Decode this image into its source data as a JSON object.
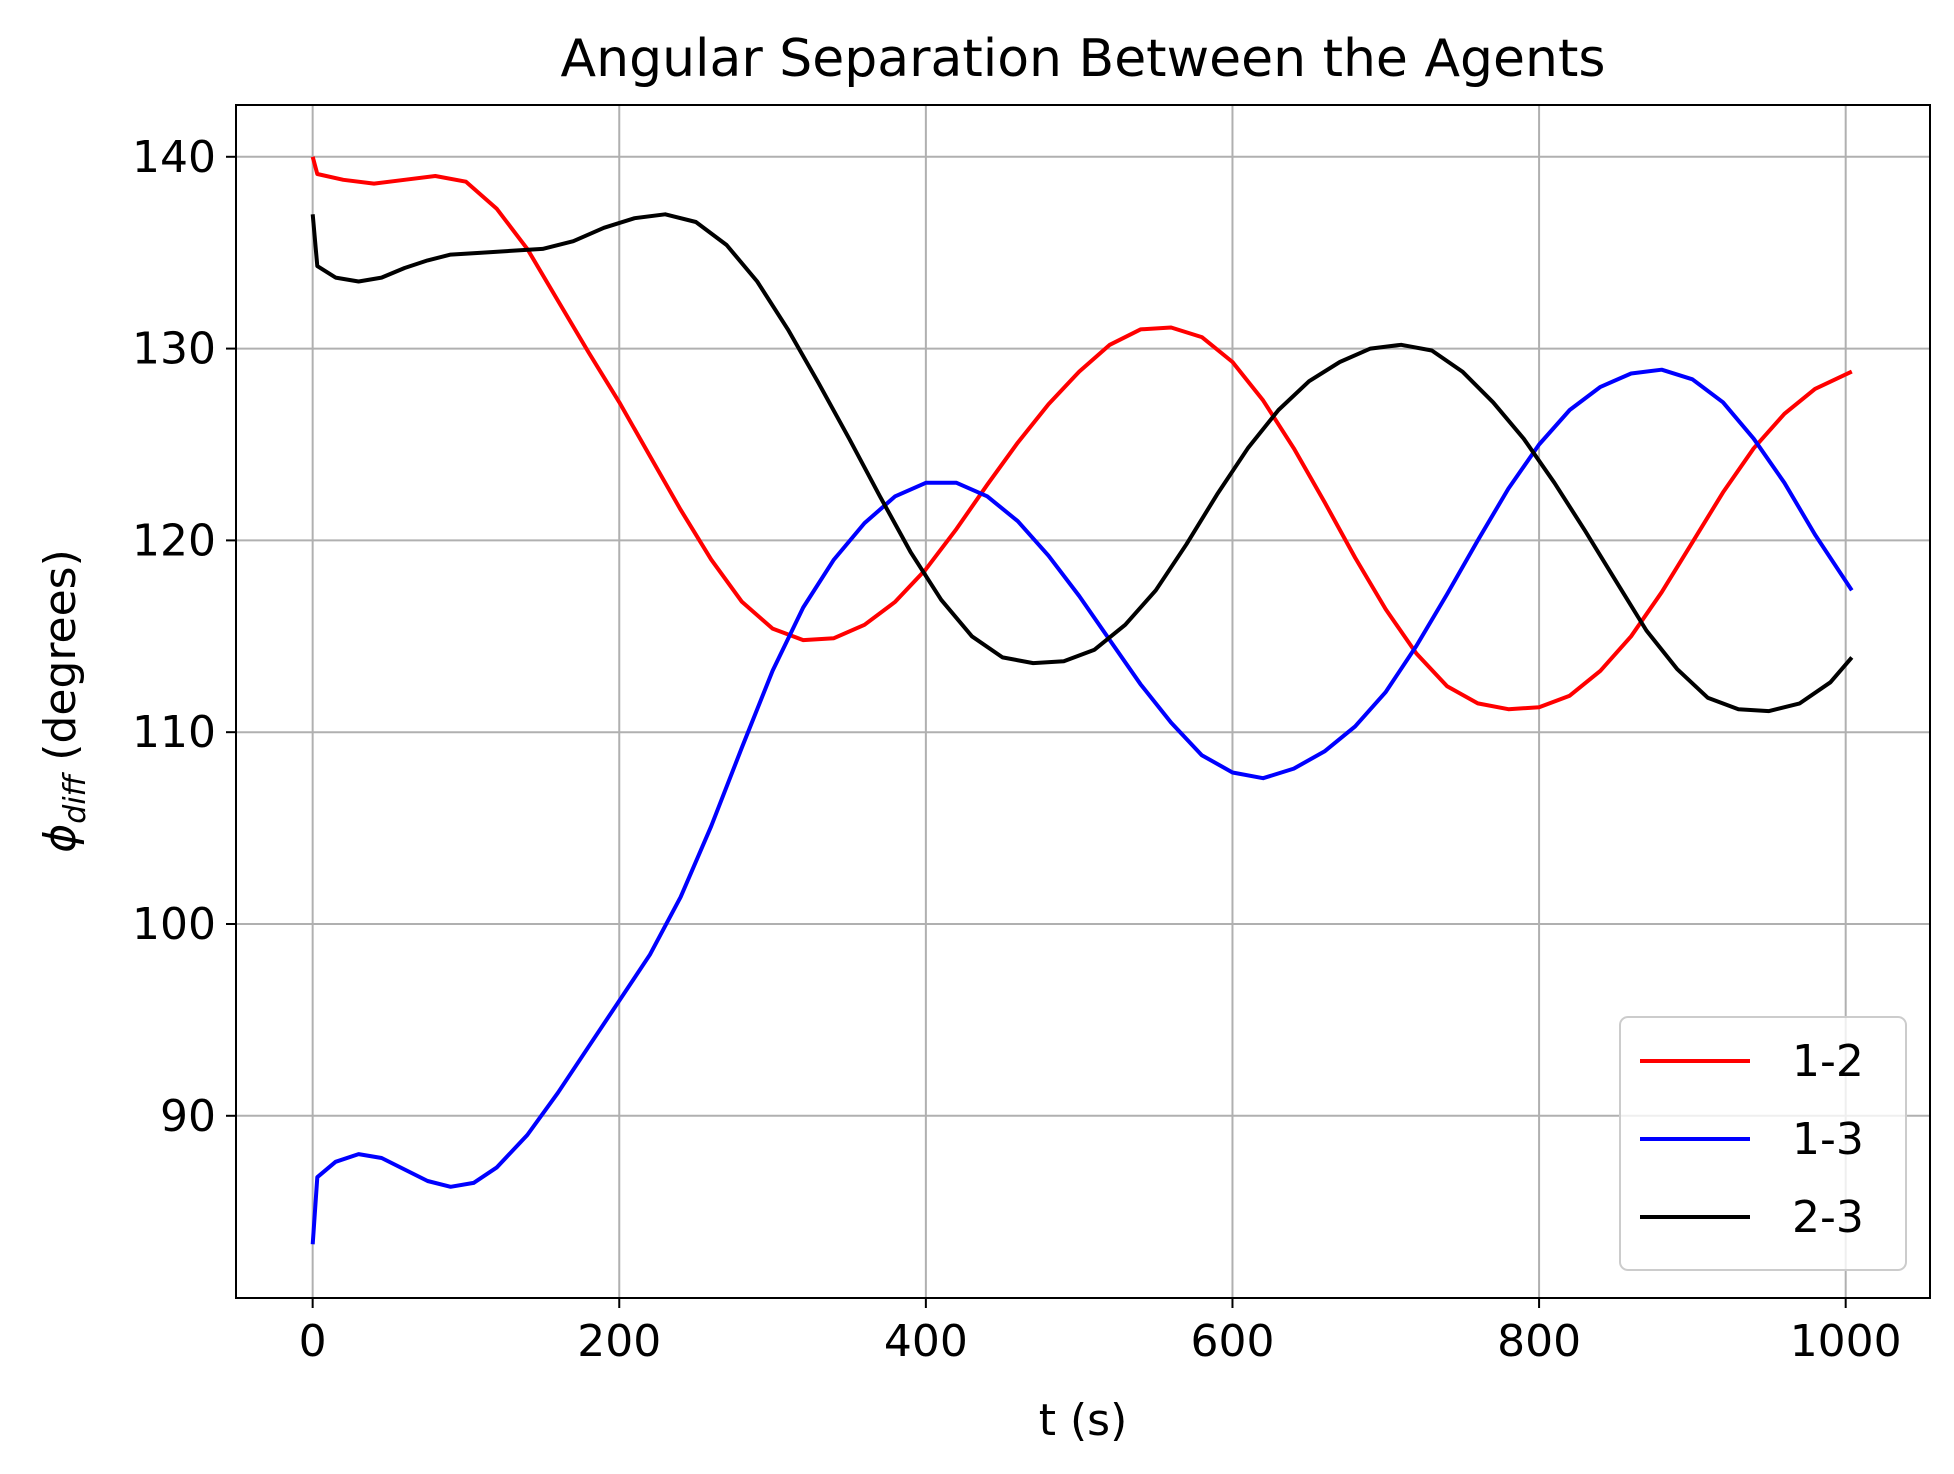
{
  "chart_data": {
    "type": "line",
    "title": "Angular Separation Between the Agents",
    "xlabel": "t (s)",
    "ylabel_symbol": "ϕ",
    "ylabel_subscript": "diff",
    "ylabel_suffix": " (degrees)",
    "xlim": [
      -50,
      1055
    ],
    "ylim": [
      80.5,
      142.7
    ],
    "xticks": [
      0,
      200,
      400,
      600,
      800,
      1000
    ],
    "yticks": [
      90,
      100,
      110,
      120,
      130,
      140
    ],
    "grid": true,
    "legend_position": "lower-right",
    "series": [
      {
        "name": "1-2",
        "color": "#ff0000",
        "points": [
          [
            0,
            140
          ],
          [
            3,
            139.1
          ],
          [
            20,
            138.8
          ],
          [
            40,
            138.6
          ],
          [
            60,
            138.8
          ],
          [
            80,
            139
          ],
          [
            100,
            138.7
          ],
          [
            120,
            137.3
          ],
          [
            140,
            135.2
          ],
          [
            160,
            132.5
          ],
          [
            180,
            129.8
          ],
          [
            200,
            127.2
          ],
          [
            220,
            124.4
          ],
          [
            240,
            121.6
          ],
          [
            260,
            119
          ],
          [
            280,
            116.8
          ],
          [
            300,
            115.4
          ],
          [
            320,
            114.8
          ],
          [
            340,
            114.9
          ],
          [
            360,
            115.6
          ],
          [
            380,
            116.8
          ],
          [
            400,
            118.5
          ],
          [
            420,
            120.6
          ],
          [
            440,
            122.9
          ],
          [
            460,
            125.1
          ],
          [
            480,
            127.1
          ],
          [
            500,
            128.8
          ],
          [
            520,
            130.2
          ],
          [
            540,
            131
          ],
          [
            560,
            131.1
          ],
          [
            580,
            130.6
          ],
          [
            600,
            129.3
          ],
          [
            620,
            127.3
          ],
          [
            640,
            124.8
          ],
          [
            660,
            122
          ],
          [
            680,
            119.1
          ],
          [
            700,
            116.4
          ],
          [
            720,
            114.1
          ],
          [
            740,
            112.4
          ],
          [
            760,
            111.5
          ],
          [
            780,
            111.2
          ],
          [
            800,
            111.3
          ],
          [
            820,
            111.9
          ],
          [
            840,
            113.2
          ],
          [
            860,
            115
          ],
          [
            880,
            117.3
          ],
          [
            900,
            119.9
          ],
          [
            920,
            122.5
          ],
          [
            940,
            124.8
          ],
          [
            960,
            126.6
          ],
          [
            980,
            127.9
          ],
          [
            1004,
            128.8
          ]
        ]
      },
      {
        "name": "1-3",
        "color": "#0000ff",
        "points": [
          [
            0,
            83.3
          ],
          [
            3,
            86.8
          ],
          [
            15,
            87.6
          ],
          [
            30,
            88
          ],
          [
            45,
            87.8
          ],
          [
            60,
            87.2
          ],
          [
            75,
            86.6
          ],
          [
            90,
            86.3
          ],
          [
            105,
            86.5
          ],
          [
            120,
            87.3
          ],
          [
            140,
            89
          ],
          [
            160,
            91.2
          ],
          [
            180,
            93.6
          ],
          [
            200,
            96
          ],
          [
            220,
            98.4
          ],
          [
            240,
            101.4
          ],
          [
            260,
            105.1
          ],
          [
            280,
            109.2
          ],
          [
            300,
            113.2
          ],
          [
            320,
            116.5
          ],
          [
            340,
            119
          ],
          [
            360,
            120.9
          ],
          [
            380,
            122.3
          ],
          [
            400,
            123
          ],
          [
            420,
            123
          ],
          [
            440,
            122.3
          ],
          [
            460,
            121
          ],
          [
            480,
            119.2
          ],
          [
            500,
            117.1
          ],
          [
            520,
            114.8
          ],
          [
            540,
            112.5
          ],
          [
            560,
            110.5
          ],
          [
            580,
            108.8
          ],
          [
            600,
            107.9
          ],
          [
            620,
            107.6
          ],
          [
            640,
            108.1
          ],
          [
            660,
            109
          ],
          [
            680,
            110.3
          ],
          [
            700,
            112.1
          ],
          [
            720,
            114.5
          ],
          [
            740,
            117.2
          ],
          [
            760,
            120
          ],
          [
            780,
            122.7
          ],
          [
            800,
            125
          ],
          [
            820,
            126.8
          ],
          [
            840,
            128
          ],
          [
            860,
            128.7
          ],
          [
            880,
            128.9
          ],
          [
            900,
            128.4
          ],
          [
            920,
            127.2
          ],
          [
            940,
            125.3
          ],
          [
            960,
            123
          ],
          [
            980,
            120.3
          ],
          [
            1004,
            117.4
          ]
        ]
      },
      {
        "name": "2-3",
        "color": "#000000",
        "points": [
          [
            0,
            137
          ],
          [
            3,
            134.3
          ],
          [
            15,
            133.7
          ],
          [
            30,
            133.5
          ],
          [
            45,
            133.7
          ],
          [
            60,
            134.2
          ],
          [
            75,
            134.6
          ],
          [
            90,
            134.9
          ],
          [
            110,
            135
          ],
          [
            130,
            135.1
          ],
          [
            150,
            135.2
          ],
          [
            170,
            135.6
          ],
          [
            190,
            136.3
          ],
          [
            210,
            136.8
          ],
          [
            230,
            137
          ],
          [
            250,
            136.6
          ],
          [
            270,
            135.4
          ],
          [
            290,
            133.5
          ],
          [
            310,
            131
          ],
          [
            330,
            128.2
          ],
          [
            350,
            125.3
          ],
          [
            370,
            122.3
          ],
          [
            390,
            119.4
          ],
          [
            410,
            116.9
          ],
          [
            430,
            115
          ],
          [
            450,
            113.9
          ],
          [
            470,
            113.6
          ],
          [
            490,
            113.7
          ],
          [
            510,
            114.3
          ],
          [
            530,
            115.6
          ],
          [
            550,
            117.4
          ],
          [
            570,
            119.8
          ],
          [
            590,
            122.4
          ],
          [
            610,
            124.8
          ],
          [
            630,
            126.8
          ],
          [
            650,
            128.3
          ],
          [
            670,
            129.3
          ],
          [
            690,
            130
          ],
          [
            710,
            130.2
          ],
          [
            730,
            129.9
          ],
          [
            750,
            128.8
          ],
          [
            770,
            127.2
          ],
          [
            790,
            125.3
          ],
          [
            810,
            123
          ],
          [
            830,
            120.5
          ],
          [
            850,
            117.9
          ],
          [
            870,
            115.3
          ],
          [
            890,
            113.3
          ],
          [
            910,
            111.8
          ],
          [
            930,
            111.2
          ],
          [
            950,
            111.1
          ],
          [
            970,
            111.5
          ],
          [
            990,
            112.6
          ],
          [
            1004,
            113.9
          ]
        ]
      }
    ]
  }
}
